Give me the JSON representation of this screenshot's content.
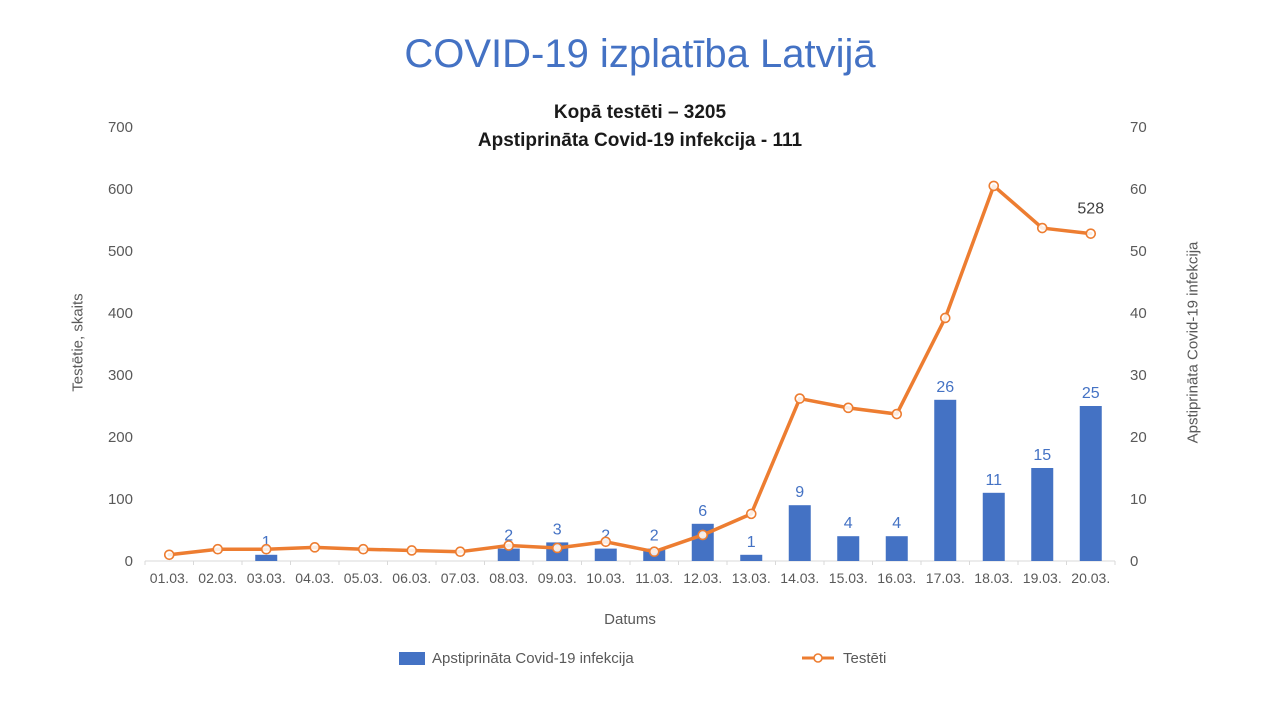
{
  "title": "COVID-19 izplatība Latvijā",
  "subtitle_line1": "Kopā testēti – 3205",
  "subtitle_line2": "Apstiprināta Covid-19 infekcija - 111",
  "colors": {
    "title": "#4472C4",
    "bar": "#4472C4",
    "line": "#ED7D31",
    "axis_text": "#595959",
    "axis_line": "#D9D9D9",
    "point_label": "#404040"
  },
  "chart_data": {
    "type": "bar",
    "subtype": "combo-bar-line",
    "categories": [
      "01.03.",
      "02.03.",
      "03.03.",
      "04.03.",
      "05.03.",
      "06.03.",
      "07.03.",
      "08.03.",
      "09.03.",
      "10.03.",
      "11.03.",
      "12.03.",
      "13.03.",
      "14.03.",
      "15.03.",
      "16.03.",
      "17.03.",
      "18.03.",
      "19.03.",
      "20.03."
    ],
    "series": [
      {
        "name": "Apstiprināta Covid-19 infekcija",
        "type": "bar",
        "axis": "right",
        "color": "#4472C4",
        "values": [
          0,
          0,
          1,
          0,
          0,
          0,
          0,
          2,
          3,
          2,
          2,
          6,
          1,
          9,
          4,
          4,
          26,
          11,
          15,
          25
        ],
        "show_labels": true
      },
      {
        "name": "Testēti",
        "type": "line",
        "axis": "left",
        "color": "#ED7D31",
        "values": [
          10,
          19,
          19,
          22,
          19,
          17,
          15,
          25,
          21,
          31,
          15,
          42,
          76,
          262,
          247,
          237,
          392,
          605,
          537,
          528
        ],
        "last_point_label": "528"
      }
    ],
    "left_axis": {
      "title": "Testētie, skaits",
      "min": 0,
      "max": 700,
      "step": 100
    },
    "right_axis": {
      "title": "Apstiprināta Covid-19 infekcija",
      "min": 0,
      "max": 70,
      "step": 10
    },
    "x_axis": {
      "title": "Datums"
    },
    "grid": false,
    "legend_position": "bottom"
  }
}
